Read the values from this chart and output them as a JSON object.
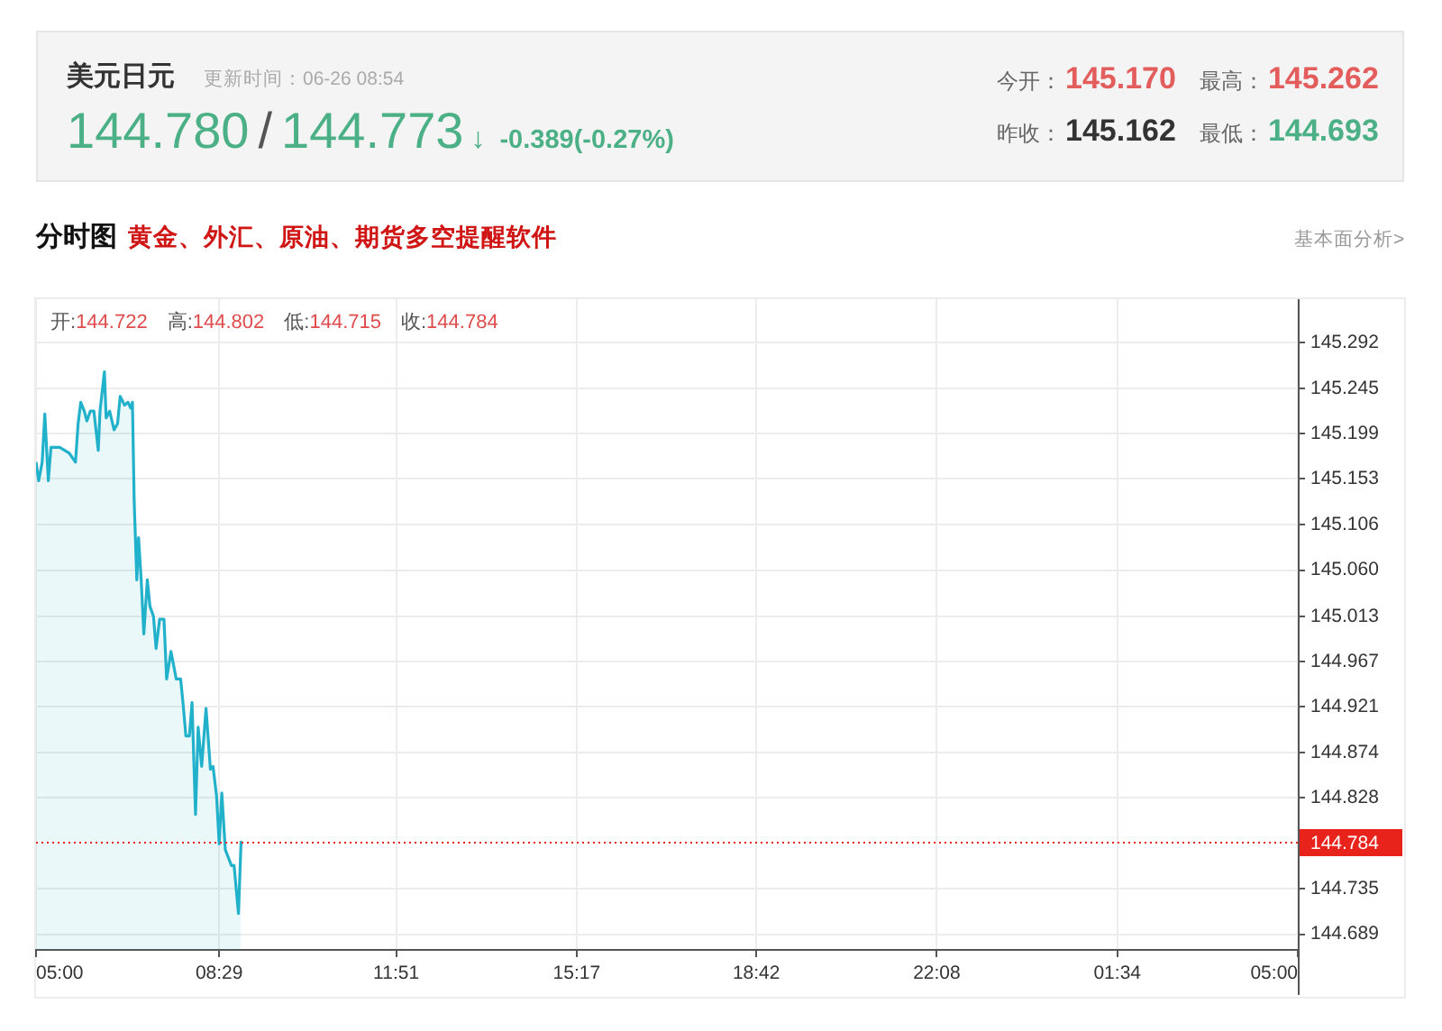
{
  "chart_data": {
    "type": "area",
    "title": "美元日元",
    "subtitle": "分时图",
    "annotations": [
      "更新时间：06-26 08:54",
      "144.780",
      "/",
      "144.773",
      "↓",
      "-0.389(-0.27%)",
      "今开：",
      "145.170",
      "最高：",
      "145.262",
      "昨收：",
      "145.162",
      "最低：",
      "144.693",
      "黄金、外汇、原油、期货多空提醒软件",
      "基本面分析>",
      "开:",
      "144.722",
      "高:",
      "144.802",
      "低:",
      "144.715",
      "收:",
      "144.784"
    ],
    "x": [
      "--06-26T05:00",
      "--06-26T05:03",
      "--06-26T05:07",
      "--06-26T05:10",
      "--06-26T05:14",
      "--06-26T05:17",
      "--06-26T05:27",
      "--06-26T05:38",
      "--06-26T05:45",
      "--06-26T05:48",
      "--06-26T05:51",
      "--06-26T05:55",
      "--06-26T05:58",
      "--06-26T06:02",
      "--06-26T06:06",
      "--06-26T06:11",
      "--06-26T06:13",
      "--06-26T06:18",
      "--06-26T06:20",
      "--06-26T06:24",
      "--06-26T06:29",
      "--06-26T06:33",
      "--06-26T06:36",
      "--06-26T06:41",
      "--06-26T06:45",
      "--06-26T06:48",
      "--06-26T06:50",
      "--06-26T06:52",
      "--06-26T06:55",
      "--06-26T06:57",
      "--06-26T07:00",
      "--06-26T07:03",
      "--06-26T07:07",
      "--06-26T07:10",
      "--06-26T07:14",
      "--06-26T07:17",
      "--06-26T07:21",
      "--06-26T07:26",
      "--06-26T07:29",
      "--06-26T07:34",
      "--06-26T07:40",
      "--06-26T07:45",
      "--06-26T07:48",
      "--06-26T07:51",
      "--06-26T07:55",
      "--06-26T07:58",
      "--06-26T08:02",
      "--06-26T08:05",
      "--06-26T08:09",
      "--06-26T08:14",
      "--06-26T08:19",
      "--06-26T08:22",
      "--06-26T08:26",
      "--06-26T08:29",
      "--06-26T08:32",
      "--06-26T08:36",
      "--06-26T08:43",
      "--06-26T08:46",
      "--06-26T08:51",
      "--06-26T08:54"
    ],
    "series": [
      {
        "color": "#22b1cb",
        "values": [
          145.17,
          145.151,
          145.17,
          145.219,
          145.151,
          145.185,
          145.185,
          145.179,
          145.17,
          145.209,
          145.231,
          145.222,
          145.212,
          145.222,
          145.222,
          145.182,
          145.222,
          145.262,
          145.215,
          145.222,
          145.203,
          145.209,
          145.237,
          145.228,
          145.231,
          145.225,
          145.231,
          145.13,
          145.05,
          145.093,
          145.05,
          144.995,
          145.05,
          145.023,
          145.013,
          144.98,
          145.01,
          145.01,
          144.949,
          144.977,
          144.949,
          144.949,
          144.922,
          144.891,
          144.891,
          144.925,
          144.811,
          144.9,
          144.86,
          144.919,
          144.857,
          144.86,
          144.83,
          144.781,
          144.833,
          144.775,
          144.759,
          144.759,
          144.71,
          144.784
        ]
      }
    ],
    "xlim": [
      "--06-26T05:00",
      "--06-27T05:00"
    ],
    "xticks": [
      {
        "value": "--06-26T05:00",
        "label": "05:00"
      },
      {
        "value": "--06-26T08:29",
        "label": "08:29"
      },
      {
        "value": "--06-26T11:51",
        "label": "11:51"
      },
      {
        "value": "--06-26T15:17",
        "label": "15:17"
      },
      {
        "value": "--06-26T18:42",
        "label": "18:42"
      },
      {
        "value": "--06-26T22:08",
        "label": "22:08"
      },
      {
        "value": "--06-27T01:34",
        "label": "01:34"
      },
      {
        "value": "--06-27T05:00",
        "label": "05:00"
      }
    ],
    "ylim": [
      144.673,
      145.336
    ],
    "yticks": [
      145.292,
      145.245,
      145.199,
      145.153,
      145.106,
      {
        "value": 145.06,
        "label": "145.060"
      },
      145.013,
      144.967,
      144.921,
      144.874,
      144.828,
      144.735,
      144.689
    ],
    "ref_lines": [
      {
        "axis": "y",
        "value": 144.784,
        "label": "144.784",
        "color": "#e8231b",
        "line_style": "dotted"
      }
    ],
    "grid": true,
    "marker": "none"
  }
}
